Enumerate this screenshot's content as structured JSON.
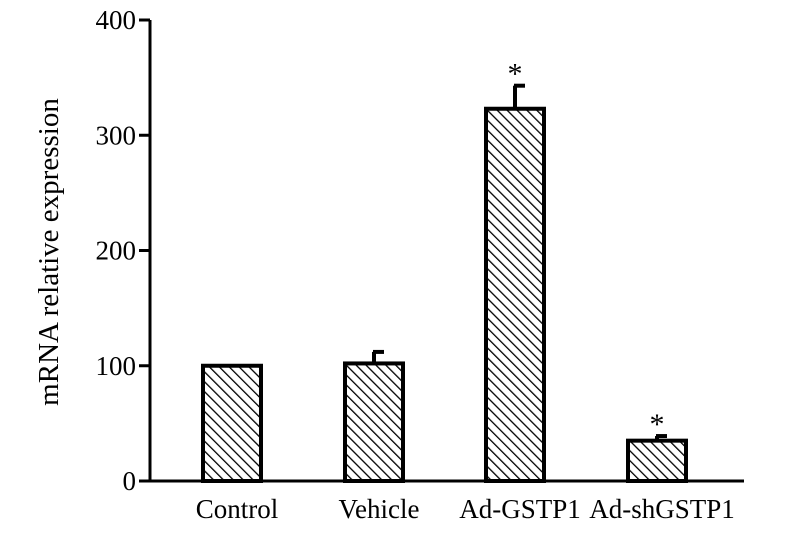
{
  "chart_data": {
    "type": "bar",
    "ylabel": "mRNA relative expression",
    "xlabel": "",
    "ylim": [
      0,
      400
    ],
    "yticks": [
      "0",
      "100",
      "200",
      "300",
      "400"
    ],
    "categories": [
      "Control",
      "Vehicle",
      "Ad-GSTP1",
      "Ad-shGSTP1"
    ],
    "values": [
      100,
      102,
      323,
      35
    ],
    "errors": [
      0,
      10,
      20,
      4
    ],
    "significance": [
      "",
      "",
      "*",
      "*"
    ],
    "bar_pattern": "diagonal-hatch",
    "colors": {
      "bar_stroke": "#000000",
      "hatch": "#000000",
      "fill": "#ffffff"
    }
  }
}
